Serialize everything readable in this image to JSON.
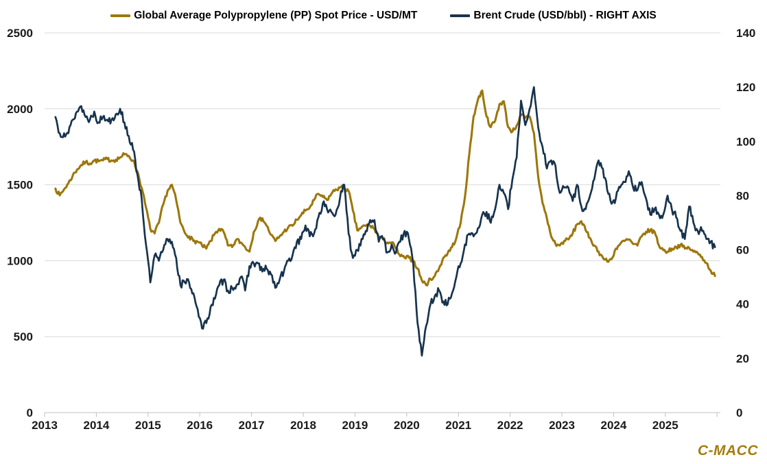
{
  "legend": {
    "entries": [
      {
        "label": "Global Average Polypropylene (PP) Spot Price - USD/MT",
        "color": "#9D770C"
      },
      {
        "label": "Brent Crude (USD/bbl) - RIGHT AXIS",
        "color": "#17334D"
      }
    ]
  },
  "branding": {
    "logo_text": "C-MACC",
    "logo_color": "#A57C0B"
  },
  "colors": {
    "background": "#FFFFFF",
    "pp_line": "#9D770C",
    "brent_line": "#17334D",
    "gridline": "#D9D9D9",
    "axis_line": "#BFBFBF",
    "tick_label": "#1A1A1A"
  },
  "chart_data": {
    "type": "line",
    "title": "",
    "grid": "horizontal-on",
    "legend_position": "top-center",
    "x_start_year": 2013.21,
    "x_step_years": 0.083333,
    "x_axis": {
      "range": [
        2013,
        2026
      ],
      "tick_years": [
        2013,
        2014,
        2015,
        2016,
        2017,
        2018,
        2019,
        2020,
        2021,
        2022,
        2023,
        2024,
        2025,
        2026
      ],
      "labels": [
        "2013",
        "2014",
        "2015",
        "2016",
        "2017",
        "2018",
        "2019",
        "2020",
        "2021",
        "2022",
        "2023",
        "2024",
        "2025"
      ]
    },
    "left_axis": {
      "range": [
        0,
        2500
      ],
      "ticks": [
        0,
        500,
        1000,
        1500,
        2000,
        2500
      ],
      "unit": "USD/MT"
    },
    "right_axis": {
      "range": [
        0,
        140
      ],
      "ticks": [
        0,
        20,
        40,
        60,
        80,
        100,
        120,
        140
      ],
      "unit": "USD/bbl"
    },
    "series": [
      {
        "name": "Global Average Polypropylene (PP) Spot Price - USD/MT",
        "axis": "left",
        "color": "#9D770C",
        "cadence": "monthly from Mar-2013 to Dec-2025",
        "values": [
          1475,
          1430,
          1470,
          1510,
          1560,
          1600,
          1630,
          1650,
          1640,
          1660,
          1655,
          1660,
          1670,
          1660,
          1665,
          1680,
          1700,
          1690,
          1660,
          1590,
          1480,
          1350,
          1210,
          1180,
          1250,
          1370,
          1460,
          1500,
          1400,
          1250,
          1185,
          1160,
          1130,
          1125,
          1100,
          1080,
          1130,
          1180,
          1210,
          1190,
          1100,
          1090,
          1140,
          1120,
          1090,
          1060,
          1190,
          1260,
          1280,
          1230,
          1170,
          1130,
          1160,
          1190,
          1220,
          1230,
          1270,
          1300,
          1330,
          1350,
          1400,
          1440,
          1420,
          1400,
          1440,
          1470,
          1480,
          1480,
          1460,
          1330,
          1200,
          1220,
          1230,
          1230,
          1210,
          1160,
          1140,
          1120,
          1120,
          1080,
          1030,
          1020,
          1020,
          1000,
          950,
          870,
          840,
          880,
          900,
          950,
          1020,
          1050,
          1090,
          1150,
          1250,
          1420,
          1700,
          1950,
          2060,
          2120,
          1950,
          1880,
          1920,
          2030,
          2050,
          1880,
          1850,
          1890,
          1960,
          1940,
          1950,
          1840,
          1550,
          1380,
          1280,
          1160,
          1110,
          1100,
          1130,
          1140,
          1180,
          1240,
          1260,
          1200,
          1150,
          1100,
          1060,
          1020,
          995,
          1010,
          1080,
          1110,
          1130,
          1140,
          1110,
          1100,
          1160,
          1190,
          1200,
          1190,
          1100,
          1070,
          1060,
          1080,
          1090,
          1105,
          1080,
          1085,
          1060,
          1050,
          1025,
          985,
          935,
          900
        ]
      },
      {
        "name": "Brent Crude (USD/bbl) - RIGHT AXIS",
        "axis": "right",
        "color": "#17334D",
        "cadence": "monthly from Mar-2013 to Dec-2025",
        "values": [
          109,
          103,
          103,
          103,
          108,
          111,
          113,
          109,
          108,
          111,
          107,
          109,
          108,
          108,
          110,
          112,
          107,
          102,
          97,
          88,
          79,
          62,
          48,
          58,
          56,
          60,
          64,
          63,
          57,
          47,
          48,
          48,
          44,
          38,
          31,
          33,
          39,
          42,
          47,
          49,
          45,
          46,
          47,
          50,
          45,
          54,
          55,
          55,
          52,
          53,
          51,
          46,
          49,
          52,
          56,
          58,
          63,
          64,
          69,
          65,
          66,
          72,
          77,
          75,
          74,
          73,
          79,
          84,
          66,
          57,
          60,
          64,
          67,
          71,
          71,
          63,
          64,
          59,
          62,
          59,
          63,
          67,
          64,
          55,
          33,
          21,
          32,
          40,
          43,
          45,
          41,
          40,
          44,
          50,
          55,
          62,
          66,
          65,
          68,
          73,
          74,
          70,
          75,
          84,
          81,
          75,
          86,
          94,
          115,
          106,
          112,
          120,
          105,
          98,
          90,
          93,
          91,
          81,
          83,
          83,
          78,
          84,
          76,
          75,
          80,
          86,
          93,
          90,
          82,
          77,
          79,
          83,
          85,
          89,
          83,
          82,
          85,
          79,
          73,
          75,
          73,
          73,
          80,
          75,
          72,
          67,
          64,
          76,
          70,
          67,
          67,
          64,
          63,
          61
        ]
      }
    ]
  }
}
